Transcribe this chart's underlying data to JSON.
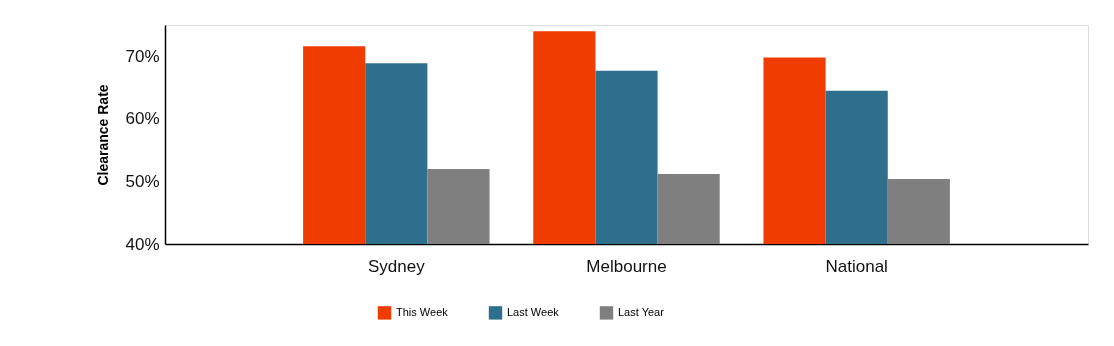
{
  "chart_data": {
    "type": "bar",
    "ylabel": "Clearance Rate",
    "categories": [
      "Sydney",
      "Melbourne",
      "National"
    ],
    "series": [
      {
        "name": "This Week",
        "color": "#f03c00",
        "values": [
          71.6,
          74.0,
          69.8
        ]
      },
      {
        "name": "Last Week",
        "color": "#2e6f8e",
        "values": [
          68.9,
          67.7,
          64.5
        ]
      },
      {
        "name": "Last Year",
        "color": "#7f7f7f",
        "values": [
          52.0,
          51.2,
          50.4
        ]
      }
    ],
    "ylim": [
      40,
      75
    ],
    "yticks": [
      {
        "value": 40,
        "label": "40%"
      },
      {
        "value": 50,
        "label": "50%"
      },
      {
        "value": 60,
        "label": "60%"
      },
      {
        "value": 70,
        "label": "70%"
      }
    ],
    "grid": false,
    "legend": "bottom"
  }
}
